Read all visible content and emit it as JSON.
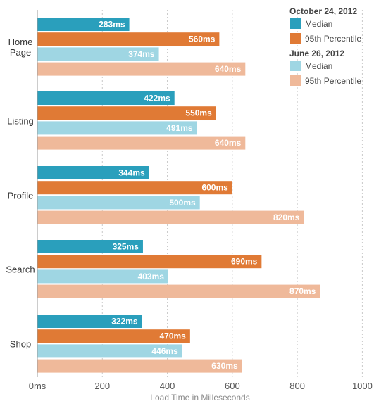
{
  "chart_data": {
    "type": "bar",
    "orientation": "horizontal",
    "categories": [
      [
        "Home",
        "Page"
      ],
      [
        "Listing"
      ],
      [
        "Profile"
      ],
      [
        "Search"
      ],
      [
        "Shop"
      ]
    ],
    "series": [
      {
        "name": "Median",
        "group": "October 24, 2012",
        "color": "#2a9fbc",
        "values": [
          283,
          422,
          344,
          325,
          322
        ],
        "labels": [
          "283ms",
          "422ms",
          "344ms",
          "325ms",
          "322ms"
        ]
      },
      {
        "name": "95th Percentile",
        "group": "October 24, 2012",
        "color": "#e07a35",
        "values": [
          560,
          550,
          600,
          690,
          470
        ],
        "labels": [
          "560ms",
          "550ms",
          "600ms",
          "690ms",
          "470ms"
        ]
      },
      {
        "name": "Median",
        "group": "June 26, 2012",
        "color": "#9fd6e3",
        "values": [
          374,
          491,
          500,
          403,
          446
        ],
        "labels": [
          "374ms",
          "491ms",
          "500ms",
          "403ms",
          "446ms"
        ]
      },
      {
        "name": "95th Percentile",
        "group": "June 26, 2012",
        "color": "#efb99a",
        "values": [
          640,
          640,
          820,
          870,
          630
        ],
        "labels": [
          "640ms",
          "640ms",
          "820ms",
          "870ms",
          "630ms"
        ]
      }
    ],
    "xlabel": "Load Time in Milleseconds",
    "ylabel": "",
    "xlim": [
      0,
      1000
    ],
    "xticks": [
      0,
      200,
      400,
      600,
      800,
      1000
    ],
    "xtick_labels": [
      "0ms",
      "200",
      "400",
      "600",
      "800",
      "1000"
    ],
    "grid": "vertical dotted",
    "legend_position": "top-right",
    "legend_groups": [
      {
        "title": "October 24, 2012",
        "items": [
          {
            "label": "Median",
            "color": "#2a9fbc"
          },
          {
            "label": "95th Percentile",
            "color": "#e07a35"
          }
        ]
      },
      {
        "title": "June 26, 2012",
        "items": [
          {
            "label": "Median",
            "color": "#9fd6e3"
          },
          {
            "label": "95th Percentile",
            "color": "#efb99a"
          }
        ]
      }
    ]
  }
}
